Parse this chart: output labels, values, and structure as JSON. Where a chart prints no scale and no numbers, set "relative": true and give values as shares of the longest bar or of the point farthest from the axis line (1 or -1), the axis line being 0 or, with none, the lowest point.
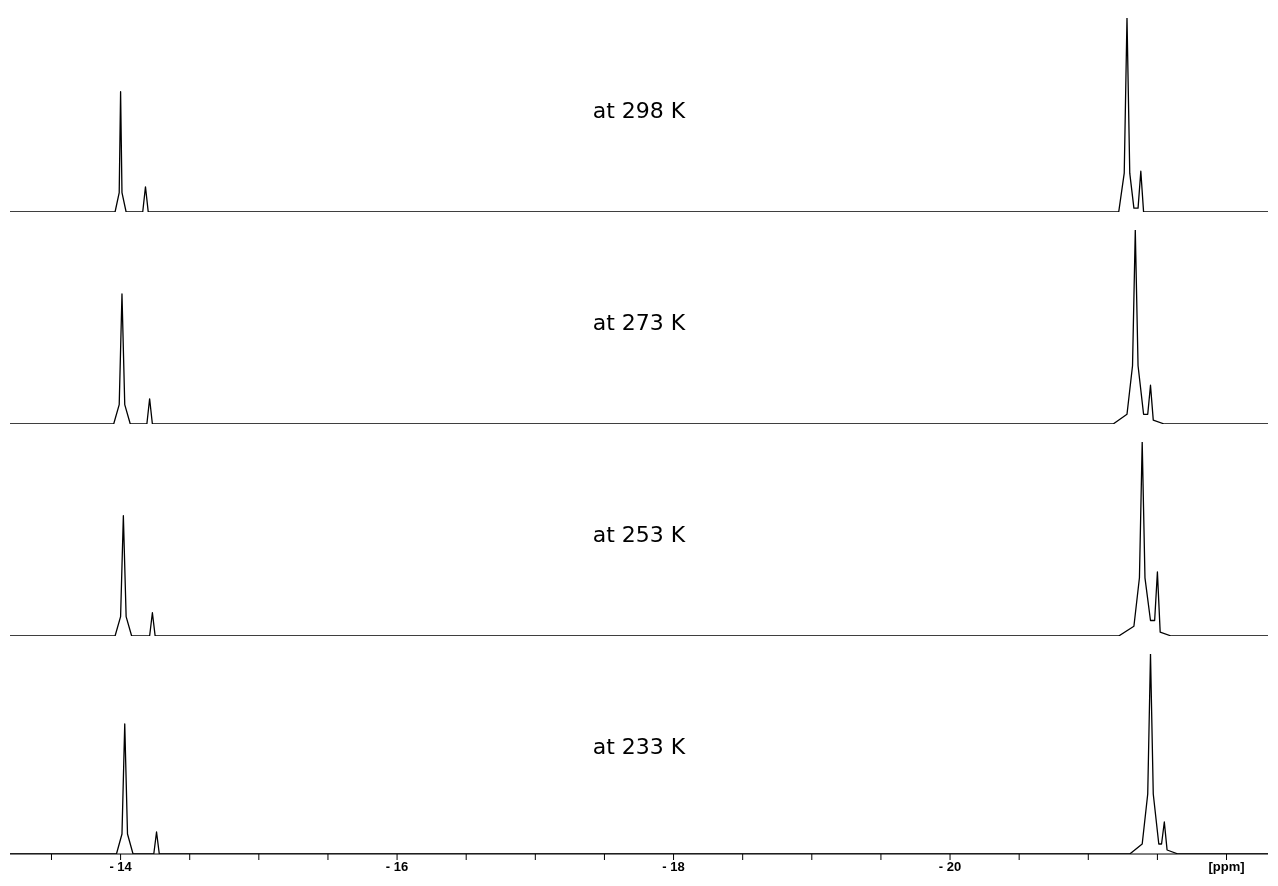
{
  "chart_data": [
    {
      "type": "line",
      "relative": true,
      "xlim": [
        -13.2,
        -22.3
      ],
      "tick_labels": false,
      "annotations": [
        "at 298 K"
      ],
      "series": [
        {
          "color": "#000000",
          "x": [
            -13.2,
            -13.96,
            -13.99,
            -14.0,
            -14.01,
            -14.04,
            -14.16,
            -14.18,
            -14.2,
            -21.22,
            -21.26,
            -21.28,
            -21.3,
            -21.33,
            -21.36,
            -21.38,
            -21.4,
            -22.3
          ],
          "values": [
            0,
            0,
            0.1,
            0.62,
            0.1,
            0,
            0,
            0.13,
            0,
            0,
            0.2,
            1,
            0.2,
            0.02,
            0.02,
            0.21,
            0,
            0
          ]
        }
      ]
    },
    {
      "type": "line",
      "relative": true,
      "xlim": [
        -13.2,
        -22.3
      ],
      "tick_labels": false,
      "annotations": [
        "at 273 K"
      ],
      "series": [
        {
          "color": "#000000",
          "x": [
            -13.2,
            -13.95,
            -13.99,
            -14.01,
            -14.03,
            -14.07,
            -14.19,
            -14.21,
            -14.23,
            -21.18,
            -21.28,
            -21.32,
            -21.34,
            -21.36,
            -21.4,
            -21.43,
            -21.45,
            -21.47,
            -21.55,
            -22.3
          ],
          "values": [
            0,
            0,
            0.1,
            0.67,
            0.1,
            0,
            0,
            0.13,
            0,
            0,
            0.05,
            0.3,
            1,
            0.3,
            0.05,
            0.05,
            0.2,
            0.02,
            0,
            0
          ]
        }
      ]
    },
    {
      "type": "line",
      "relative": true,
      "xlim": [
        -13.2,
        -22.3
      ],
      "tick_labels": false,
      "annotations": [
        "at 253 K"
      ],
      "series": [
        {
          "color": "#000000",
          "x": [
            -13.2,
            -13.96,
            -14.0,
            -14.02,
            -14.04,
            -14.08,
            -14.21,
            -14.23,
            -14.25,
            -21.22,
            -21.33,
            -21.37,
            -21.39,
            -21.41,
            -21.45,
            -21.48,
            -21.5,
            -21.52,
            -21.6,
            -22.3
          ],
          "values": [
            0,
            0,
            0.1,
            0.62,
            0.1,
            0,
            0,
            0.12,
            0,
            0,
            0.05,
            0.3,
            1,
            0.3,
            0.08,
            0.08,
            0.33,
            0.02,
            0,
            0
          ]
        }
      ]
    },
    {
      "type": "line",
      "relative": true,
      "xlim": [
        -13.2,
        -22.3
      ],
      "annotations": [
        "at 233 K"
      ],
      "xticks": [
        {
          "value": -13.5,
          "label": null
        },
        {
          "value": -14,
          "label": "- 14"
        },
        {
          "value": -14.5,
          "label": null
        },
        {
          "value": -15,
          "label": null
        },
        {
          "value": -15.5,
          "label": null
        },
        {
          "value": -16,
          "label": "- 16"
        },
        {
          "value": -16.5,
          "label": null
        },
        {
          "value": -17,
          "label": null
        },
        {
          "value": -17.5,
          "label": null
        },
        {
          "value": -18,
          "label": "- 18"
        },
        {
          "value": -18.5,
          "label": null
        },
        {
          "value": -19,
          "label": null
        },
        {
          "value": -19.5,
          "label": null
        },
        {
          "value": -20,
          "label": "- 20"
        },
        {
          "value": -20.5,
          "label": null
        },
        {
          "value": -21,
          "label": null
        },
        {
          "value": -21.5,
          "label": null
        },
        {
          "value": -22,
          "label": "[ppm]"
        }
      ],
      "series": [
        {
          "color": "#000000",
          "x": [
            -13.2,
            -13.97,
            -14.01,
            -14.03,
            -14.05,
            -14.09,
            -14.24,
            -14.26,
            -14.28,
            -21.3,
            -21.39,
            -21.43,
            -21.45,
            -21.47,
            -21.51,
            -21.53,
            -21.55,
            -21.57,
            -21.65,
            -22.3
          ],
          "values": [
            0,
            0,
            0.1,
            0.65,
            0.1,
            0,
            0,
            0.11,
            0,
            0,
            0.05,
            0.3,
            1,
            0.3,
            0.05,
            0.05,
            0.16,
            0.02,
            0,
            0
          ]
        }
      ]
    }
  ]
}
